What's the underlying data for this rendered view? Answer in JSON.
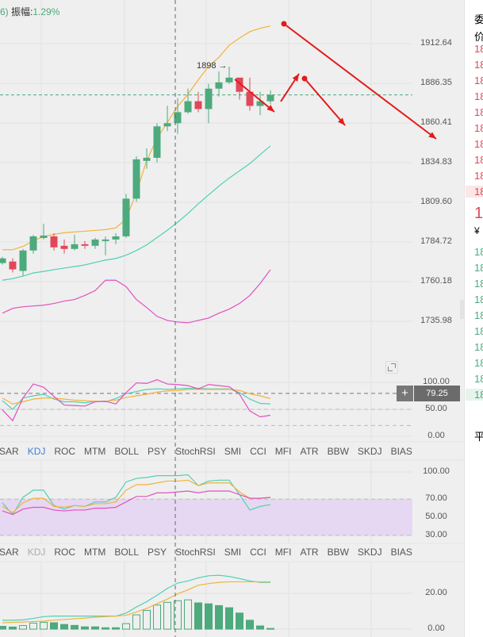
{
  "header": {
    "prefix": "6)",
    "amplitude_label": "振幅:",
    "amplitude_value": "1.29%"
  },
  "annotation_high": "1898 →",
  "crosshair": {
    "plus": "+",
    "value": "79.25"
  },
  "tabs_row1": {
    "items": [
      "SAR",
      "KDJ",
      "ROC",
      "MTM",
      "BOLL",
      "PSY",
      "StochRSI",
      "SMI",
      "CCI",
      "MFI",
      "ATR",
      "BBW",
      "SKDJ",
      "BIAS"
    ],
    "active": "KDJ"
  },
  "tabs_row2": {
    "items": [
      "SAR",
      "KDJ",
      "ROC",
      "MTM",
      "BOLL",
      "PSY",
      "StochRSI",
      "SMI",
      "CCI",
      "MFI",
      "ATR",
      "BBW",
      "SKDJ",
      "BIAS"
    ],
    "active": "KDJ"
  },
  "side_panel": {
    "title": "委",
    "price_label": "价",
    "asks": [
      "18",
      "18",
      "18",
      "18",
      "18",
      "18",
      "18",
      "18",
      "18",
      "18"
    ],
    "last_price": "1",
    "currency": "¥",
    "bids": [
      "18",
      "18",
      "18",
      "18",
      "18",
      "18",
      "18",
      "18",
      "18",
      "18"
    ],
    "footer": "平"
  },
  "colors": {
    "up": "#4daa7d",
    "down": "#e0485a",
    "orange": "#f3b23a",
    "teal": "#4fd1b5",
    "magenta": "#e052c0",
    "annotation": "#e31b1b",
    "band": "#e6d8f2"
  },
  "chart_data": [
    {
      "type": "candlestick",
      "ylim": [
        1708.2,
        1940.4
      ],
      "yticks": [
        "1912.64",
        "1886.35",
        "1860.41",
        "1834.83",
        "1809.60",
        "1784.72",
        "1760.18",
        "1735.98"
      ],
      "last_price_line": 1880,
      "candles_ohlc": [
        [
          1773,
          1777,
          1772,
          1776
        ],
        [
          1774,
          1776,
          1767,
          1769
        ],
        [
          1768,
          1782,
          1765,
          1781
        ],
        [
          1781,
          1791,
          1779,
          1790
        ],
        [
          1789,
          1798,
          1788,
          1790.5
        ],
        [
          1790,
          1792,
          1781,
          1783
        ],
        [
          1784,
          1788,
          1779,
          1782
        ],
        [
          1782,
          1791,
          1781,
          1785
        ],
        [
          1785,
          1787,
          1782,
          1784
        ],
        [
          1784,
          1789,
          1782,
          1788
        ],
        [
          1787,
          1790,
          1778,
          1788
        ],
        [
          1788,
          1792,
          1785,
          1790
        ],
        [
          1790,
          1817,
          1789,
          1814
        ],
        [
          1814,
          1841,
          1812,
          1839
        ],
        [
          1838,
          1846,
          1833,
          1840
        ],
        [
          1840,
          1862,
          1837,
          1860
        ],
        [
          1860,
          1873,
          1857,
          1862
        ],
        [
          1862,
          1878,
          1855,
          1869
        ],
        [
          1869,
          1884,
          1868,
          1876
        ],
        [
          1876,
          1882,
          1869,
          1871
        ],
        [
          1871,
          1887,
          1862,
          1884
        ],
        [
          1884,
          1895,
          1879,
          1888
        ],
        [
          1888,
          1898,
          1887,
          1891
        ],
        [
          1891,
          1891,
          1877,
          1882
        ],
        [
          1882,
          1891,
          1870,
          1873
        ],
        [
          1873,
          1882,
          1867,
          1876
        ],
        [
          1876,
          1883,
          1874,
          1880
        ]
      ],
      "series": [
        {
          "color": "orange",
          "values": [
            1781.5,
            1781.5,
            1783.6,
            1787.2,
            1789.8,
            1791.3,
            1792.3,
            1792.8,
            1793.3,
            1793.8,
            1794.3,
            1795.4,
            1801.0,
            1817.9,
            1838.4,
            1852.2,
            1862.5,
            1872.7,
            1880.4,
            1889.6,
            1898.3,
            1903.9,
            1911.6,
            1916.2,
            1920.3,
            1922.4,
            1923.9
          ]
        },
        {
          "color": "teal",
          "values": [
            1762.1,
            1763.1,
            1764.7,
            1766.7,
            1767.7,
            1768.8,
            1769.8,
            1770.8,
            1771.8,
            1773.4,
            1774.9,
            1775.9,
            1778.0,
            1781.0,
            1784.6,
            1789.2,
            1793.9,
            1799.0,
            1804.6,
            1810.7,
            1816.4,
            1822.0,
            1827.1,
            1831.7,
            1836.3,
            1842.0,
            1847.6
          ]
        },
        {
          "color": "magenta",
          "values": [
            1741.1,
            1744.2,
            1745.2,
            1745.7,
            1746.2,
            1747.3,
            1748.8,
            1749.8,
            1752.4,
            1755.5,
            1762.1,
            1762.1,
            1758.0,
            1749.8,
            1744.7,
            1739.1,
            1736.5,
            1735.5,
            1735.0,
            1736.5,
            1738.0,
            1741.1,
            1743.7,
            1747.3,
            1752.4,
            1760.0,
            1768.8
          ]
        }
      ]
    },
    {
      "type": "line",
      "ylim": [
        -10.3,
        132.4
      ],
      "yticks": [
        "100.00",
        "50.00",
        "0.00"
      ],
      "reference_lines": [
        80,
        50,
        20
      ],
      "series": [
        {
          "color": "teal",
          "values": [
            66,
            50,
            71,
            75,
            78,
            69,
            64,
            64,
            62,
            65,
            64,
            70,
            79,
            83,
            87,
            88,
            87,
            88,
            89,
            89,
            88,
            88,
            88,
            81,
            69,
            61,
            60
          ]
        },
        {
          "color": "orange",
          "values": [
            71,
            60,
            64,
            69,
            71,
            71,
            69,
            67,
            66,
            65,
            65,
            67,
            72,
            75,
            78,
            82,
            84,
            85,
            87,
            87,
            87,
            87,
            87,
            85,
            79,
            75,
            70
          ]
        },
        {
          "color": "magenta",
          "values": [
            49,
            29,
            71,
            97,
            91,
            74,
            58,
            57,
            56,
            64,
            65,
            60,
            81,
            99,
            98,
            105,
            97,
            96,
            94,
            88,
            96,
            94,
            92,
            78,
            47,
            36,
            39
          ]
        }
      ]
    },
    {
      "type": "line",
      "ylim": [
        21.1,
        113.2
      ],
      "yticks": [
        "100.00",
        "70.00",
        "50.00",
        "30.00"
      ],
      "band": [
        30,
        70
      ],
      "series": [
        {
          "color": "teal",
          "values": [
            66,
            53,
            72,
            80,
            80,
            63,
            59,
            63,
            62,
            67,
            67,
            72,
            89,
            93,
            94,
            96,
            96,
            96,
            97,
            85,
            90,
            91,
            91,
            75,
            58,
            62,
            64
          ]
        },
        {
          "color": "orange",
          "values": [
            62,
            55,
            66,
            71,
            71,
            62,
            61,
            63,
            62,
            65,
            65,
            67,
            80,
            86,
            86,
            88,
            90,
            90,
            91,
            85,
            88,
            88,
            88,
            78,
            71,
            71,
            72
          ]
        },
        {
          "color": "magenta",
          "values": [
            57,
            53,
            59,
            61,
            61,
            58,
            57,
            58,
            58,
            60,
            60,
            61,
            67,
            73,
            73,
            77,
            77,
            78,
            79,
            77,
            79,
            79,
            79,
            75,
            71,
            71,
            72
          ]
        }
      ]
    },
    {
      "type": "bar+line",
      "ylim": [
        -4.4,
        37.8
      ],
      "yticks": [
        "20.00",
        "0.00"
      ],
      "bars": [
        1.6,
        1.2,
        2,
        3.4,
        3.8,
        3.6,
        2.6,
        2.1,
        1.3,
        1.3,
        0.8,
        0.8,
        3.1,
        8,
        10.5,
        13.5,
        15,
        15.9,
        16.4,
        14.7,
        14.2,
        13.2,
        12,
        9,
        5,
        1.8,
        0.4
      ],
      "bars_hollow": [
        false,
        false,
        true,
        true,
        true,
        false,
        false,
        false,
        false,
        false,
        false,
        false,
        true,
        true,
        true,
        true,
        true,
        true,
        true,
        false,
        false,
        false,
        false,
        false,
        false,
        false,
        false
      ],
      "series": [
        {
          "color": "teal",
          "values": [
            5,
            5,
            5.2,
            6,
            7,
            7.3,
            7.3,
            7.3,
            7.3,
            7.3,
            7.3,
            7.3,
            9,
            12.4,
            15.4,
            19,
            22.8,
            25.8,
            27,
            28.7,
            29.9,
            30.2,
            29.5,
            28.3,
            27,
            26.2,
            26.2
          ]
        },
        {
          "color": "orange",
          "values": [
            3.6,
            3.8,
            4,
            4.3,
            4.5,
            5,
            5.4,
            5.8,
            6.2,
            6.7,
            7,
            7.3,
            7.8,
            9.6,
            11.6,
            14.3,
            16.8,
            19.8,
            22,
            24.6,
            25.5,
            26.2,
            26.5,
            26.5,
            26.5,
            26.5,
            26.5
          ]
        }
      ]
    }
  ]
}
